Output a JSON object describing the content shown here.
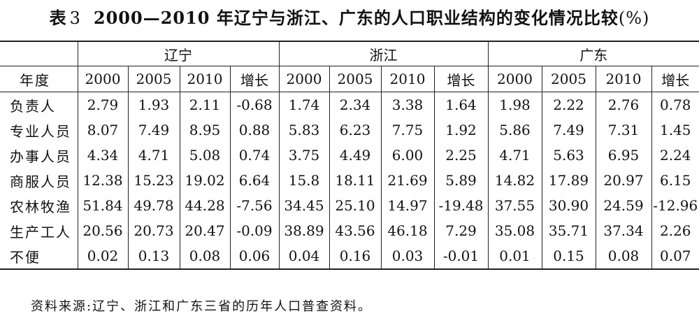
{
  "title": {
    "prefix": "表",
    "number": "3",
    "text": "2000—2010 年辽宁与浙江、广东的人口职业结构的变化情况比较",
    "unit": "(%)"
  },
  "table": {
    "row_header_label": "年度",
    "groups": [
      "辽宁",
      "浙江",
      "广东"
    ],
    "columns": [
      "2000",
      "2005",
      "2010",
      "增长",
      "2000",
      "2005",
      "2010",
      "增长",
      "2000",
      "2005",
      "2010",
      "增长"
    ],
    "rows": [
      {
        "label": "负责人",
        "values": [
          "2.79",
          "1.93",
          "2.11",
          "-0.68",
          "1.74",
          "2.34",
          "3.38",
          "1.64",
          "1.98",
          "2.22",
          "2.76",
          "0.78"
        ]
      },
      {
        "label": "专业人员",
        "values": [
          "8.07",
          "7.49",
          "8.95",
          "0.88",
          "5.83",
          "6.23",
          "7.75",
          "1.92",
          "5.86",
          "7.49",
          "7.31",
          "1.45"
        ]
      },
      {
        "label": "办事人员",
        "values": [
          "4.34",
          "4.71",
          "5.08",
          "0.74",
          "3.75",
          "4.49",
          "6.00",
          "2.25",
          "4.71",
          "5.63",
          "6.95",
          "2.24"
        ]
      },
      {
        "label": "商服人员",
        "values": [
          "12.38",
          "15.23",
          "19.02",
          "6.64",
          "15.8",
          "18.11",
          "21.69",
          "5.89",
          "14.82",
          "17.89",
          "20.97",
          "6.15"
        ]
      },
      {
        "label": "农林牧渔",
        "values": [
          "51.84",
          "49.78",
          "44.28",
          "-7.56",
          "34.45",
          "25.10",
          "14.97",
          "-19.48",
          "37.55",
          "30.90",
          "24.59",
          "-12.96"
        ]
      },
      {
        "label": "生产工人",
        "values": [
          "20.56",
          "20.73",
          "20.47",
          "-0.09",
          "38.89",
          "43.56",
          "46.18",
          "7.29",
          "35.08",
          "35.71",
          "37.34",
          "2.26"
        ]
      },
      {
        "label": "不便",
        "values": [
          "0.02",
          "0.13",
          "0.08",
          "0.06",
          "0.04",
          "0.16",
          "0.03",
          "-0.01",
          "0.01",
          "0.15",
          "0.08",
          "0.07"
        ]
      }
    ]
  },
  "source": "资料来源:辽宁、浙江和广东三省的历年人口普查资料。"
}
